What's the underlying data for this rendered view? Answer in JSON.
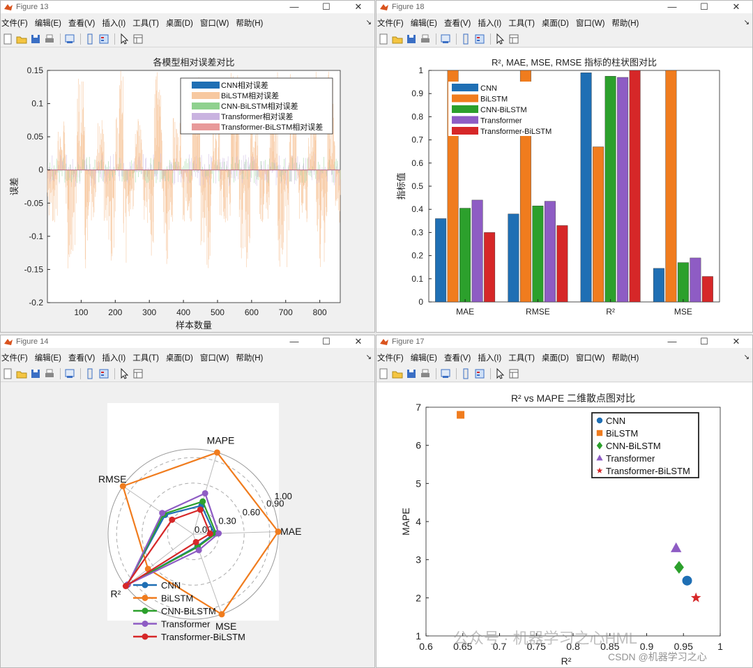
{
  "menu": [
    "文件(F)",
    "编辑(E)",
    "查看(V)",
    "插入(I)",
    "工具(T)",
    "桌面(D)",
    "窗口(W)",
    "帮助(H)"
  ],
  "window_controls": {
    "minimize": "—",
    "maximize": "☐",
    "close": "✕"
  },
  "windows": {
    "fig13": {
      "title": "Figure 13"
    },
    "fig18": {
      "title": "Figure 18"
    },
    "fig14": {
      "title": "Figure 14"
    },
    "fig17": {
      "title": "Figure 17"
    }
  },
  "watermark": {
    "text1": "公众号 · 机器学习之心HML",
    "text2": "CSDN @机器学习之心"
  },
  "chart_data": [
    {
      "id": "fig13",
      "type": "bar",
      "title": "各模型相对误差对比",
      "xlabel": "样本数量",
      "ylabel": "误差",
      "xlim": [
        1,
        860
      ],
      "ylim": [
        -0.2,
        0.15
      ],
      "xticks": [
        "100",
        "200",
        "300",
        "400",
        "500",
        "600",
        "700",
        "800"
      ],
      "yticks": [
        "0.15",
        "0.1",
        "0.05",
        "0",
        "-0.05",
        "-0.1",
        "-0.15",
        "-0.2"
      ],
      "legend": [
        "CNN相对误差",
        "BiLSTM相对误差",
        "CNN-BiLSTM相对误差",
        "Transformer相对误差",
        "Transformer-BiLSTM相对误差"
      ],
      "colors": [
        "#1f6fb4",
        "#f7c8a0",
        "#8fd18f",
        "#c9b3e0",
        "#e89a9a"
      ],
      "note": "Relative error per sample for ~860 samples; BiLSTM errors dominate, ranging roughly -0.16 to 0.12, others within about ±0.03."
    },
    {
      "id": "fig18",
      "type": "bar",
      "title": "R², MAE, MSE, RMSE 指标的柱状图对比",
      "ylabel": "指标值",
      "categories": [
        "MAE",
        "RMSE",
        "R²",
        "MSE"
      ],
      "ylim": [
        0,
        1
      ],
      "yticks": [
        "0",
        "0.1",
        "0.2",
        "0.3",
        "0.4",
        "0.5",
        "0.6",
        "0.7",
        "0.8",
        "0.9",
        "1"
      ],
      "series": [
        {
          "name": "CNN",
          "color": "#1f6fb4",
          "values": [
            0.36,
            0.38,
            0.99,
            0.145
          ]
        },
        {
          "name": "BiLSTM",
          "color": "#f07c1e",
          "values": [
            1.0,
            1.0,
            0.67,
            1.0
          ]
        },
        {
          "name": "CNN-BiLSTM",
          "color": "#2ca02c",
          "values": [
            0.405,
            0.415,
            0.975,
            0.17
          ]
        },
        {
          "name": "Transformer",
          "color": "#8e5cc4",
          "values": [
            0.44,
            0.435,
            0.97,
            0.19
          ]
        },
        {
          "name": "Transformer-BiLSTM",
          "color": "#d62728",
          "values": [
            0.3,
            0.33,
            1.0,
            0.11
          ]
        }
      ]
    },
    {
      "id": "fig14",
      "type": "radar",
      "axes": [
        "MAPE",
        "MAE",
        "MSE",
        "R²",
        "RMSE"
      ],
      "rticks": [
        "0.00",
        "0.30",
        "0.60",
        "0.90",
        "1.00"
      ],
      "series": [
        {
          "name": "CNN",
          "color": "#1f6fb4",
          "values": [
            0.35,
            0.25,
            0.15,
            0.98,
            0.4
          ]
        },
        {
          "name": "BiLSTM",
          "color": "#f07c1e",
          "values": [
            1.0,
            1.0,
            1.0,
            0.67,
            1.0
          ]
        },
        {
          "name": "CNN-BiLSTM",
          "color": "#2ca02c",
          "values": [
            0.4,
            0.27,
            0.16,
            0.97,
            0.42
          ]
        },
        {
          "name": "Transformer",
          "color": "#8e5cc4",
          "values": [
            0.5,
            0.3,
            0.2,
            0.97,
            0.44
          ]
        },
        {
          "name": "Transformer-BiLSTM",
          "color": "#d62728",
          "values": [
            0.3,
            0.2,
            0.1,
            1.0,
            0.3
          ]
        }
      ]
    },
    {
      "id": "fig17",
      "type": "scatter",
      "title": "R² vs MAPE 二维散点图对比",
      "xlabel": "R²",
      "ylabel": "MAPE",
      "xlim": [
        0.6,
        1.0
      ],
      "ylim": [
        1,
        7
      ],
      "xticks": [
        "0.6",
        "0.65",
        "0.7",
        "0.75",
        "0.8",
        "0.85",
        "0.9",
        "0.95",
        "1"
      ],
      "yticks": [
        "1",
        "2",
        "3",
        "4",
        "5",
        "6",
        "7"
      ],
      "series": [
        {
          "name": "CNN",
          "color": "#1f6fb4",
          "marker": "circle",
          "x": 0.955,
          "y": 2.45
        },
        {
          "name": "BiLSTM",
          "color": "#f07c1e",
          "marker": "square",
          "x": 0.647,
          "y": 6.8
        },
        {
          "name": "CNN-BiLSTM",
          "color": "#2ca02c",
          "marker": "diamond",
          "x": 0.944,
          "y": 2.8
        },
        {
          "name": "Transformer",
          "color": "#8e5cc4",
          "marker": "triangle",
          "x": 0.94,
          "y": 3.3
        },
        {
          "name": "Transformer-BiLSTM",
          "color": "#d62728",
          "marker": "star",
          "x": 0.967,
          "y": 2.0
        }
      ]
    }
  ]
}
